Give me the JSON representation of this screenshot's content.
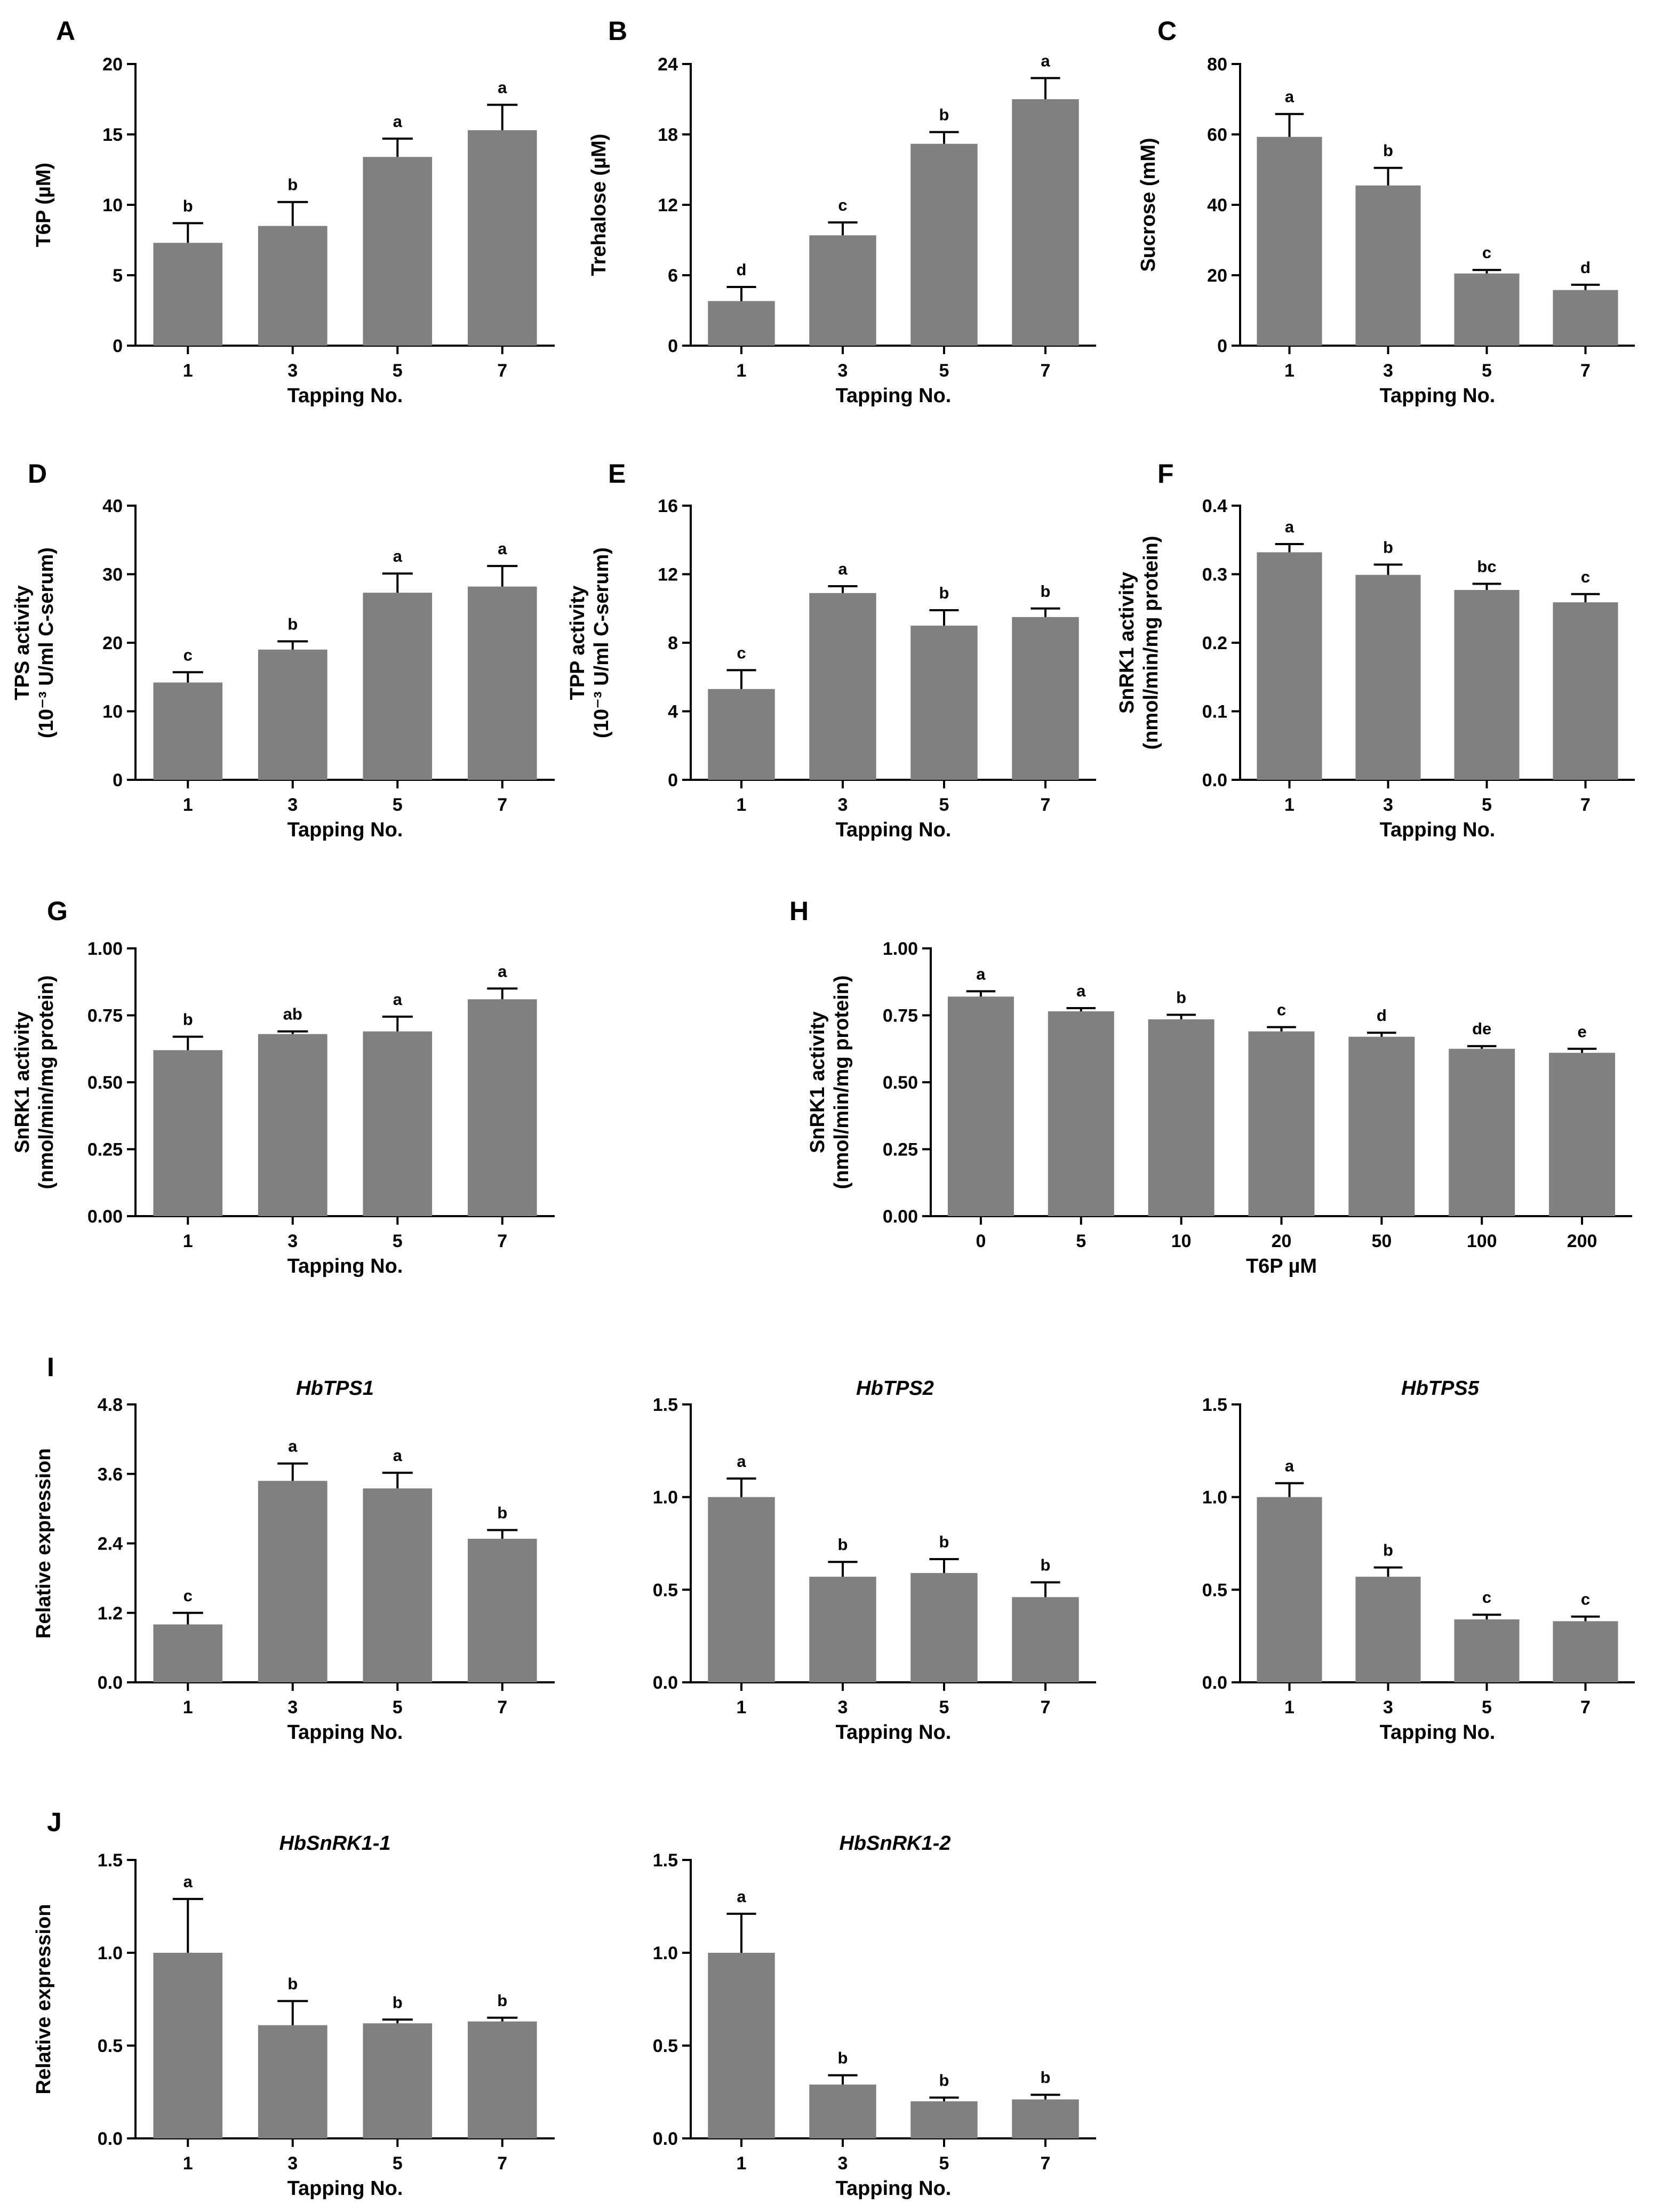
{
  "colors": {
    "bar": "#808080",
    "axis": "#000000"
  },
  "chart_data": [
    {
      "id": "A",
      "panel_label": "A",
      "type": "bar",
      "title": "",
      "xlabel": "Tapping No.",
      "ylabel_lines": [
        "T6P (µM)"
      ],
      "categories": [
        "1",
        "3",
        "5",
        "7"
      ],
      "values": [
        7.3,
        8.5,
        13.4,
        15.3
      ],
      "errors": [
        1.4,
        1.7,
        1.3,
        1.8
      ],
      "letters": [
        "b",
        "b",
        "a",
        "a"
      ],
      "ylim": [
        0,
        20
      ],
      "yticks": [
        "0",
        "5",
        "10",
        "15",
        "20"
      ]
    },
    {
      "id": "B",
      "panel_label": "B",
      "type": "bar",
      "title": "",
      "xlabel": "Tapping No.",
      "ylabel_lines": [
        "Trehalose (µM)"
      ],
      "categories": [
        "1",
        "3",
        "5",
        "7"
      ],
      "values": [
        3.8,
        9.4,
        17.2,
        21.0
      ],
      "errors": [
        1.2,
        1.1,
        1.0,
        1.8
      ],
      "letters": [
        "d",
        "c",
        "b",
        "a"
      ],
      "ylim": [
        0,
        24
      ],
      "yticks": [
        "0",
        "6",
        "12",
        "18",
        "24"
      ]
    },
    {
      "id": "C",
      "panel_label": "C",
      "type": "bar",
      "title": "",
      "xlabel": "Tapping No.",
      "ylabel_lines": [
        "Sucrose (mM)"
      ],
      "categories": [
        "1",
        "3",
        "5",
        "7"
      ],
      "values": [
        59.3,
        45.5,
        20.5,
        15.8
      ],
      "errors": [
        6.5,
        5.0,
        1.0,
        1.5
      ],
      "letters": [
        "a",
        "b",
        "c",
        "d"
      ],
      "ylim": [
        0,
        80
      ],
      "yticks": [
        "0",
        "20",
        "40",
        "60",
        "80"
      ]
    },
    {
      "id": "D",
      "panel_label": "D",
      "type": "bar",
      "title": "",
      "xlabel": "Tapping No.",
      "ylabel_lines": [
        "TPS activity",
        "(10⁻³ U/ml C-serum)"
      ],
      "categories": [
        "1",
        "3",
        "5",
        "7"
      ],
      "values": [
        14.2,
        19.0,
        27.3,
        28.2
      ],
      "errors": [
        1.5,
        1.2,
        2.8,
        3.0
      ],
      "letters": [
        "c",
        "b",
        "a",
        "a"
      ],
      "ylim": [
        0,
        40
      ],
      "yticks": [
        "0",
        "10",
        "20",
        "30",
        "40"
      ]
    },
    {
      "id": "E",
      "panel_label": "E",
      "type": "bar",
      "title": "",
      "xlabel": "Tapping No.",
      "ylabel_lines": [
        "TPP activity",
        "(10⁻³ U/ml C-serum)"
      ],
      "categories": [
        "1",
        "3",
        "5",
        "7"
      ],
      "values": [
        5.3,
        10.9,
        9.0,
        9.5
      ],
      "errors": [
        1.1,
        0.4,
        0.9,
        0.5
      ],
      "letters": [
        "c",
        "a",
        "b",
        "b"
      ],
      "ylim": [
        0,
        16
      ],
      "yticks": [
        "0",
        "4",
        "8",
        "12",
        "16"
      ]
    },
    {
      "id": "F",
      "panel_label": "F",
      "type": "bar",
      "title": "",
      "xlabel": "Tapping No.",
      "ylabel_lines": [
        "SnRK1 activity",
        "(nmol/min/mg protein)"
      ],
      "categories": [
        "1",
        "3",
        "5",
        "7"
      ],
      "values": [
        0.332,
        0.299,
        0.277,
        0.259
      ],
      "errors": [
        0.012,
        0.015,
        0.009,
        0.012
      ],
      "letters": [
        "a",
        "b",
        "bc",
        "c"
      ],
      "ylim": [
        0,
        0.4
      ],
      "yticks": [
        "0.0",
        "0.1",
        "0.2",
        "0.3",
        "0.4"
      ]
    },
    {
      "id": "G",
      "panel_label": "G",
      "type": "bar",
      "title": "",
      "xlabel": "Tapping No.",
      "ylabel_lines": [
        "SnRK1 activity",
        "(nmol/min/mg protein)"
      ],
      "categories": [
        "1",
        "3",
        "5",
        "7"
      ],
      "values": [
        0.62,
        0.68,
        0.69,
        0.81
      ],
      "errors": [
        0.05,
        0.01,
        0.055,
        0.04
      ],
      "letters": [
        "b",
        "ab",
        "a",
        "a"
      ],
      "ylim": [
        0,
        1.0
      ],
      "yticks": [
        "0.00",
        "0.25",
        "0.50",
        "0.75",
        "1.00"
      ]
    },
    {
      "id": "H",
      "panel_label": "H",
      "type": "bar",
      "title": "",
      "xlabel": "T6P µM",
      "ylabel_lines": [
        "SnRK1 activity",
        "(nmol/min/mg protein)"
      ],
      "categories": [
        "0",
        "5",
        "10",
        "20",
        "50",
        "100",
        "200"
      ],
      "values": [
        0.82,
        0.765,
        0.735,
        0.69,
        0.67,
        0.625,
        0.61
      ],
      "errors": [
        0.02,
        0.012,
        0.017,
        0.016,
        0.015,
        0.01,
        0.015
      ],
      "letters": [
        "a",
        "a",
        "b",
        "c",
        "d",
        "de",
        "e"
      ],
      "ylim": [
        0,
        1.0
      ],
      "yticks": [
        "0.00",
        "0.25",
        "0.50",
        "0.75",
        "1.00"
      ]
    },
    {
      "id": "I1",
      "panel_label": "I",
      "type": "bar",
      "title": "HbTPS1",
      "xlabel": "Tapping No.",
      "ylabel_lines": [
        "Relative expression"
      ],
      "categories": [
        "1",
        "3",
        "5",
        "7"
      ],
      "values": [
        1.0,
        3.48,
        3.35,
        2.48
      ],
      "errors": [
        0.2,
        0.3,
        0.27,
        0.15
      ],
      "letters": [
        "c",
        "a",
        "a",
        "b"
      ],
      "ylim": [
        0,
        4.8
      ],
      "yticks": [
        "0.0",
        "1.2",
        "2.4",
        "3.6",
        "4.8"
      ]
    },
    {
      "id": "I2",
      "panel_label": "",
      "type": "bar",
      "title": "HbTPS2",
      "xlabel": "Tapping No.",
      "ylabel_lines": [],
      "categories": [
        "1",
        "3",
        "5",
        "7"
      ],
      "values": [
        1.0,
        0.57,
        0.59,
        0.46
      ],
      "errors": [
        0.1,
        0.08,
        0.075,
        0.08
      ],
      "letters": [
        "a",
        "b",
        "b",
        "b"
      ],
      "ylim": [
        0,
        1.5
      ],
      "yticks": [
        "0.0",
        "0.5",
        "1.0",
        "1.5"
      ]
    },
    {
      "id": "I3",
      "panel_label": "",
      "type": "bar",
      "title": "HbTPS5",
      "xlabel": "Tapping No.",
      "ylabel_lines": [],
      "categories": [
        "1",
        "3",
        "5",
        "7"
      ],
      "values": [
        1.0,
        0.57,
        0.34,
        0.33
      ],
      "errors": [
        0.075,
        0.05,
        0.025,
        0.025
      ],
      "letters": [
        "a",
        "b",
        "c",
        "c"
      ],
      "ylim": [
        0,
        1.5
      ],
      "yticks": [
        "0.0",
        "0.5",
        "1.0",
        "1.5"
      ]
    },
    {
      "id": "J1",
      "panel_label": "J",
      "type": "bar",
      "title": "HbSnRK1-1",
      "xlabel": "Tapping No.",
      "ylabel_lines": [
        "Relative expression"
      ],
      "categories": [
        "1",
        "3",
        "5",
        "7"
      ],
      "values": [
        1.0,
        0.61,
        0.62,
        0.63
      ],
      "errors": [
        0.29,
        0.13,
        0.02,
        0.02
      ],
      "letters": [
        "a",
        "b",
        "b",
        "b"
      ],
      "ylim": [
        0,
        1.5
      ],
      "yticks": [
        "0.0",
        "0.5",
        "1.0",
        "1.5"
      ]
    },
    {
      "id": "J2",
      "panel_label": "",
      "type": "bar",
      "title": "HbSnRK1-2",
      "xlabel": "Tapping No.",
      "ylabel_lines": [],
      "categories": [
        "1",
        "3",
        "5",
        "7"
      ],
      "values": [
        1.0,
        0.29,
        0.2,
        0.21
      ],
      "errors": [
        0.21,
        0.05,
        0.02,
        0.025
      ],
      "letters": [
        "a",
        "b",
        "b",
        "b"
      ],
      "ylim": [
        0,
        1.5
      ],
      "yticks": [
        "0.0",
        "0.5",
        "1.0",
        "1.5"
      ]
    }
  ]
}
